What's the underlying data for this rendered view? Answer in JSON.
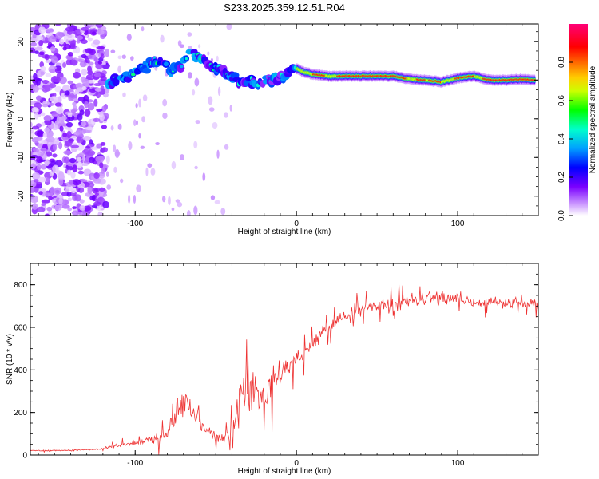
{
  "title": "S233.2025.359.12.51.R04",
  "chart_data": [
    {
      "type": "heatmap",
      "xlabel": "Height of straight line (km)",
      "ylabel": "Frequency (Hz)",
      "xlim": [
        -165,
        150
      ],
      "ylim": [
        -25,
        24.5
      ],
      "xticks": [
        -100,
        0,
        100
      ],
      "yticks": [
        -20,
        -10,
        0,
        10,
        20
      ],
      "grid": false,
      "colorbar": {
        "label": "Normalized spectral amplitude",
        "range": [
          0,
          1
        ],
        "ticks": [
          0,
          0.2,
          0.4,
          0.6,
          0.8
        ],
        "tick_labels": [
          "0.0",
          "0.2",
          "0.4",
          "0.6",
          "0.8"
        ],
        "colormap": [
          "#ffffff",
          "#cc99ff",
          "#6600ff",
          "#0000ff",
          "#00ccff",
          "#00ff66",
          "#ffff00",
          "#ff6600",
          "#ff0000",
          "#ff0077"
        ]
      },
      "ridge": {
        "description_points_x": [
          -118,
          -105,
          -95,
          -85,
          -75,
          -65,
          -55,
          -45,
          -35,
          -25,
          -15,
          -8,
          0,
          5,
          10,
          20,
          40,
          60,
          70,
          80,
          90,
          100,
          110,
          120,
          130,
          140,
          148
        ],
        "description_points_y": [
          9.5,
          10.5,
          13.5,
          15,
          12,
          18,
          14,
          12,
          9.5,
          9,
          10,
          11,
          13,
          12,
          11.5,
          11,
          11,
          11,
          10.3,
          10,
          9.5,
          10.5,
          11,
          10,
          10,
          10.2,
          10
        ]
      }
    },
    {
      "type": "line",
      "xlabel": "Height of straight line (km)",
      "ylabel": "SNR (10 * v/v)",
      "xlim": [
        -165,
        150
      ],
      "ylim": [
        0,
        900
      ],
      "xticks": [
        -100,
        0,
        100
      ],
      "yticks": [
        0,
        200,
        400,
        600,
        800
      ],
      "grid": false,
      "series": [
        {
          "color": "#ee3333",
          "envelope_x": [
            -165,
            -140,
            -120,
            -110,
            -100,
            -90,
            -80,
            -75,
            -70,
            -65,
            -60,
            -55,
            -50,
            -45,
            -40,
            -35,
            -30,
            -25,
            -20,
            -15,
            -10,
            -5,
            0,
            5,
            10,
            15,
            20,
            30,
            40,
            50,
            60,
            70,
            80,
            90,
            100,
            110,
            120,
            130,
            140,
            150
          ],
          "envelope_y": [
            20,
            22,
            28,
            45,
            55,
            70,
            110,
            200,
            270,
            190,
            150,
            110,
            90,
            70,
            120,
            280,
            320,
            300,
            280,
            330,
            380,
            420,
            450,
            470,
            520,
            570,
            600,
            650,
            690,
            700,
            710,
            720,
            740,
            740,
            730,
            720,
            720,
            715,
            710,
            710
          ],
          "spread": [
            4,
            5,
            6,
            15,
            20,
            25,
            50,
            100,
            120,
            80,
            60,
            40,
            30,
            25,
            60,
            140,
            160,
            150,
            120,
            110,
            100,
            80,
            70,
            60,
            55,
            50,
            45,
            45,
            45,
            45,
            45,
            45,
            50,
            50,
            45,
            40,
            35,
            30,
            30,
            30
          ]
        }
      ]
    }
  ]
}
